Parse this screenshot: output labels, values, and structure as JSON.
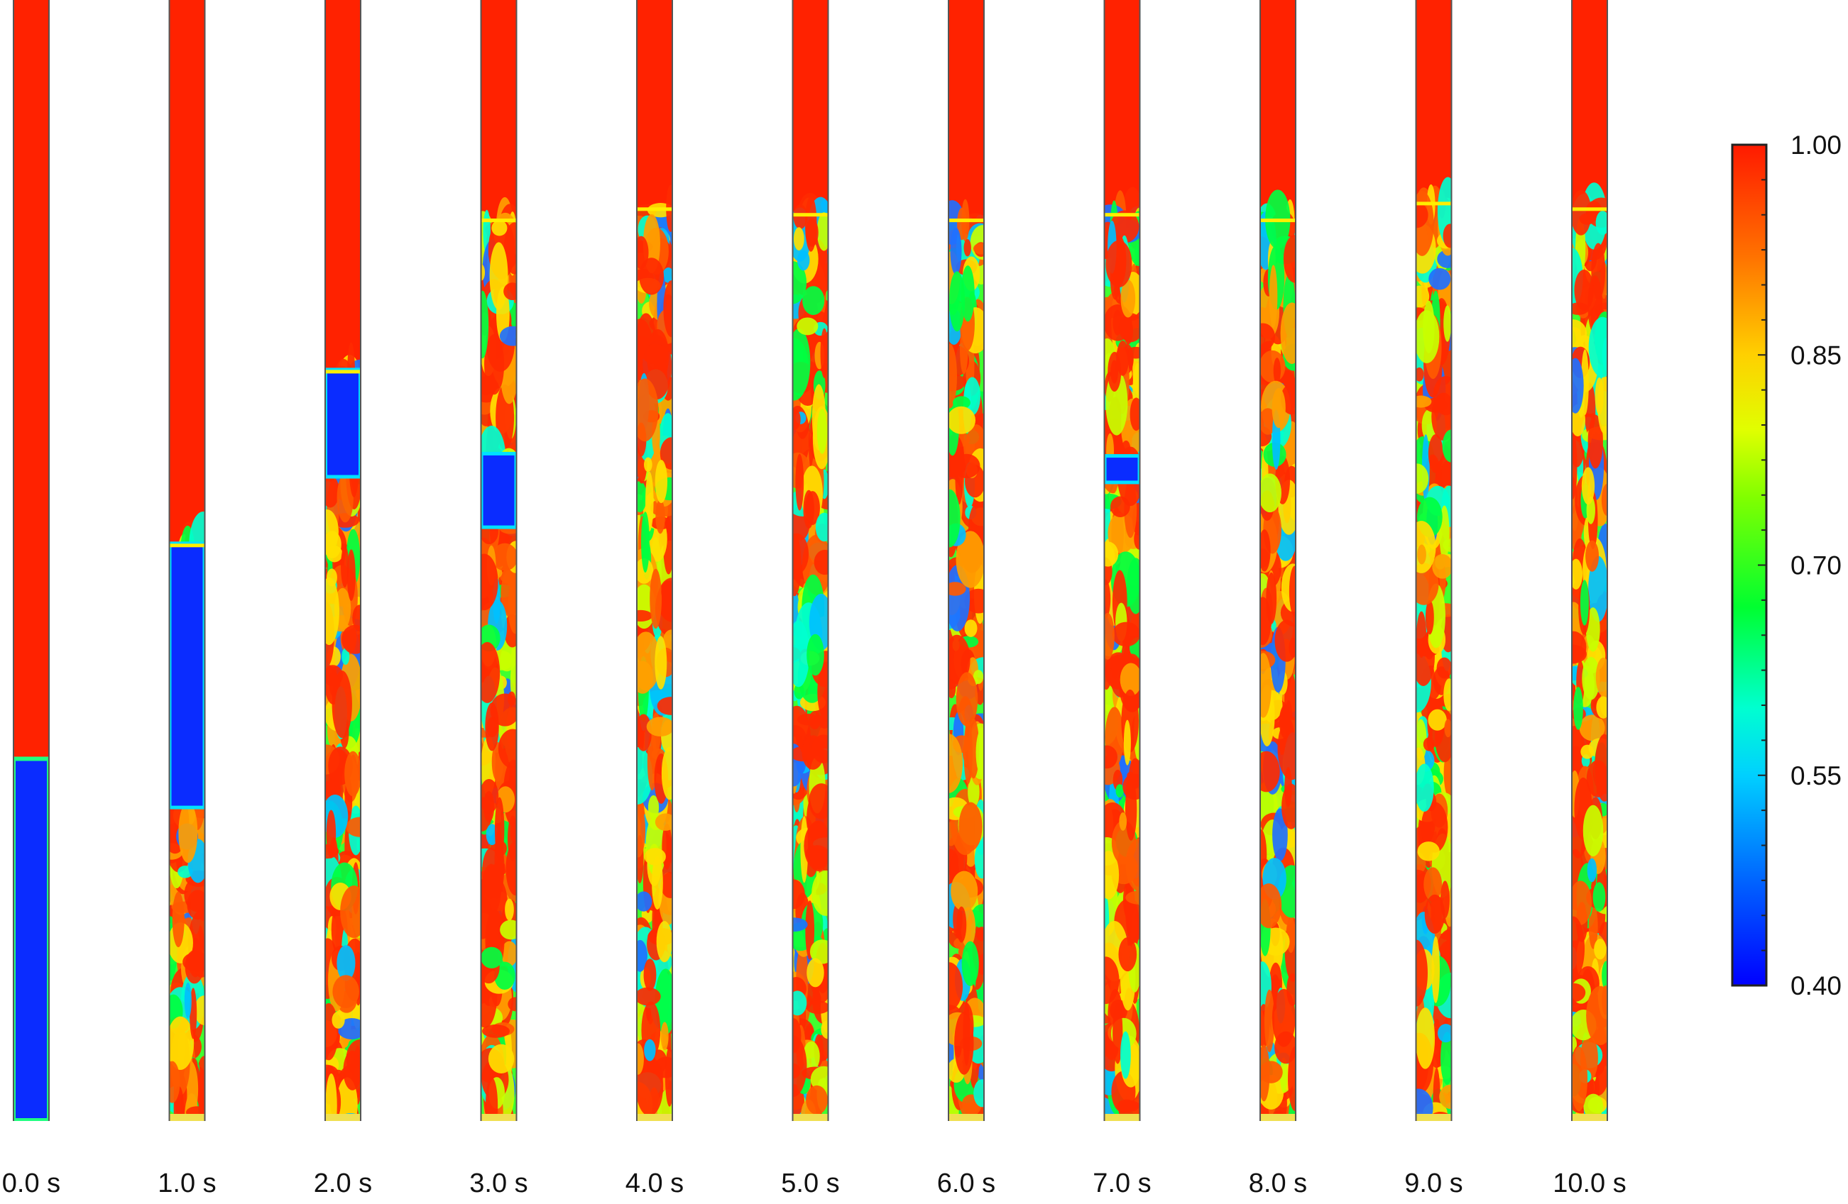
{
  "figure": {
    "colormap": {
      "ticks": [
        "1.00",
        "0.85",
        "0.70",
        "0.55",
        "0.40"
      ],
      "tick_values": [
        1.0,
        0.85,
        0.7,
        0.55,
        0.4
      ],
      "colors": [
        "#0000ff",
        "#00a8ff",
        "#00ffff",
        "#00ff00",
        "#aaff00",
        "#ffff00",
        "#ffaa00",
        "#ff2200"
      ]
    },
    "snapshots": [
      {
        "time": "0.0 s",
        "bed_top": 0.325,
        "description": "clear interface, dense phase below"
      },
      {
        "time": "1.0 s",
        "bed_top": 0.515,
        "slug_top": 0.515,
        "slug_bottom": 0.28
      },
      {
        "time": "2.0 s",
        "bed_top": 0.67,
        "slug_top": 0.67,
        "slug_bottom": 0.575
      },
      {
        "time": "3.0 s",
        "bed_top": 0.805,
        "slug_top": 0.595,
        "slug_bottom": 0.53
      },
      {
        "time": "4.0 s",
        "bed_top": 0.815
      },
      {
        "time": "5.0 s",
        "bed_top": 0.81
      },
      {
        "time": "6.0 s",
        "bed_top": 0.805
      },
      {
        "time": "7.0 s",
        "bed_top": 0.81,
        "slug_top": 0.593,
        "slug_bottom": 0.57
      },
      {
        "time": "8.0 s",
        "bed_top": 0.805
      },
      {
        "time": "9.0 s",
        "bed_top": 0.82
      },
      {
        "time": "10.0 s",
        "bed_top": 0.815
      }
    ]
  }
}
